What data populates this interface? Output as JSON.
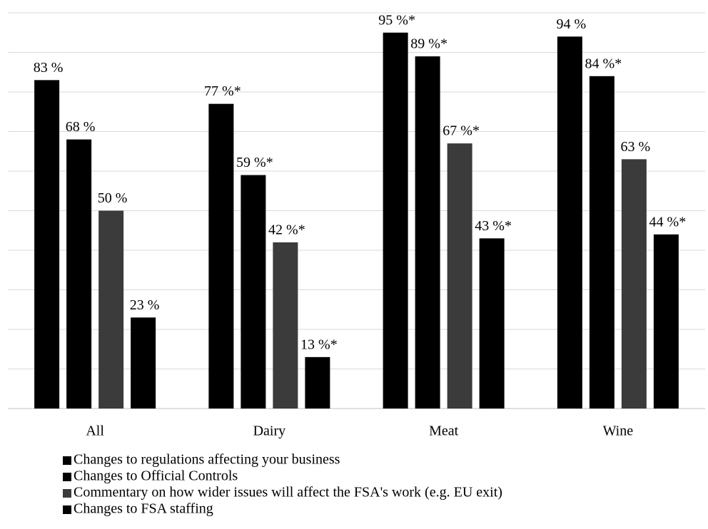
{
  "chart_data": {
    "type": "bar",
    "categories": [
      "All",
      "Dairy",
      "Meat",
      "Wine"
    ],
    "series": [
      {
        "name": "Changes to regulations affecting your business",
        "color": "#000000",
        "values": [
          83,
          77,
          95,
          94
        ],
        "value_labels": [
          "83 %",
          "77 %*",
          "95 %*",
          "94 %"
        ]
      },
      {
        "name": "Changes to Official Controls",
        "color": "#000000",
        "values": [
          68,
          59,
          89,
          84
        ],
        "value_labels": [
          "68 %",
          "59 %*",
          "89 %*",
          "84 %*"
        ]
      },
      {
        "name": "Commentary on how wider issues will affect the FSA's work (e.g. EU exit)",
        "color": "#3b3b3b",
        "values": [
          50,
          42,
          67,
          63
        ],
        "value_labels": [
          "50 %",
          "42 %*",
          "67 %*",
          "63 %"
        ]
      },
      {
        "name": "Changes to FSA staffing",
        "color": "#000000",
        "values": [
          23,
          13,
          43,
          44
        ],
        "value_labels": [
          "23 %",
          "13 %*",
          "43 %*",
          "44 %*"
        ]
      }
    ],
    "ylim": [
      0,
      100
    ],
    "yticks": [
      0,
      10,
      20,
      30,
      40,
      50,
      60,
      70,
      80,
      90,
      100
    ],
    "grid": true,
    "legend": "bottom"
  }
}
